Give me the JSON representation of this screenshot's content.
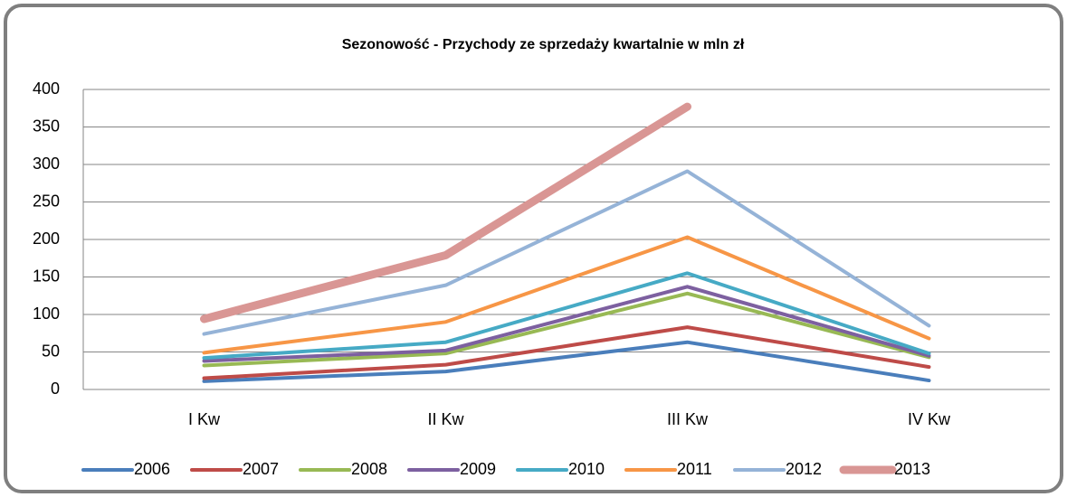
{
  "chart_data": {
    "type": "line",
    "title": "Sezonowość  - Przychody ze sprzedaży kwartalnie w mln zł",
    "categories": [
      "I Kw",
      "II Kw",
      "III Kw",
      "IV Kw"
    ],
    "series": [
      {
        "name": "2006",
        "color": "#4a7ebb",
        "line_width": 4,
        "values": [
          11,
          24,
          63,
          12
        ]
      },
      {
        "name": "2007",
        "color": "#be4b48",
        "line_width": 4,
        "values": [
          15,
          33,
          83,
          30
        ]
      },
      {
        "name": "2008",
        "color": "#98b954",
        "line_width": 4,
        "values": [
          32,
          48,
          128,
          43
        ]
      },
      {
        "name": "2009",
        "color": "#7d60a0",
        "line_width": 4,
        "values": [
          38,
          52,
          137,
          45
        ]
      },
      {
        "name": "2010",
        "color": "#46aac5",
        "line_width": 4,
        "values": [
          42,
          63,
          155,
          48
        ]
      },
      {
        "name": "2011",
        "color": "#f79646",
        "line_width": 4,
        "values": [
          49,
          90,
          203,
          68
        ]
      },
      {
        "name": "2012",
        "color": "#95b3d7",
        "line_width": 4,
        "values": [
          74,
          139,
          291,
          85
        ]
      },
      {
        "name": "2013",
        "color": "#d99694",
        "line_width": 9,
        "values": [
          94,
          179,
          377,
          null
        ]
      }
    ],
    "ylim": [
      0,
      400
    ],
    "yticks": [
      0,
      50,
      100,
      150,
      200,
      250,
      300,
      350,
      400
    ],
    "grid": true,
    "legend": "bottom"
  }
}
